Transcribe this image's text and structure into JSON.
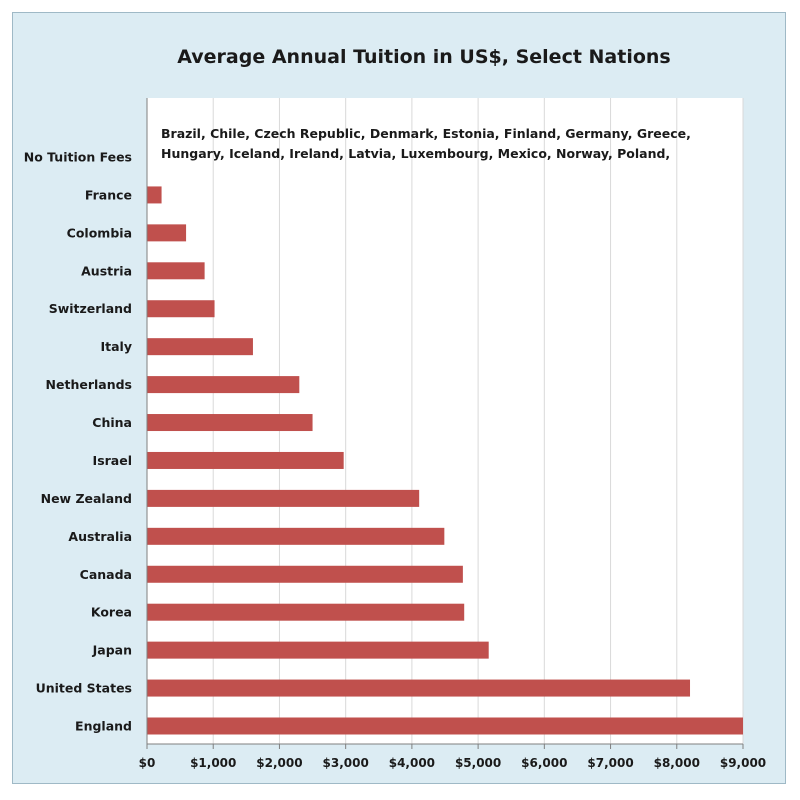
{
  "chart_data": {
    "type": "bar",
    "orientation": "horizontal",
    "title": "Average Annual Tuition in US$, Select Nations",
    "categories": [
      "No Tuition Fees",
      "France",
      "Colombia",
      "Austria",
      "Switzerland",
      "Italy",
      "Netherlands",
      "China",
      "Israel",
      "New Zealand",
      "Australia",
      "Canada",
      "Korea",
      "Japan",
      "United States",
      "England"
    ],
    "values": [
      0,
      220,
      590,
      870,
      1020,
      1600,
      2300,
      2500,
      2970,
      4110,
      4490,
      4770,
      4790,
      5160,
      8200,
      9000
    ],
    "xlim": [
      0,
      9000
    ],
    "x_ticks": [
      "$0",
      "$1,000",
      "$2,000",
      "$3,000",
      "$4,000",
      "$5,000",
      "$6,000",
      "$7,000",
      "$8,000",
      "$9,000"
    ],
    "grid": "vertical",
    "bar_color": "#c0504d",
    "annotation_lines": [
      "Brazil, Chile, Czech Republic, Denmark, Estonia, Finland, Germany, Greece,",
      "Hungary, Iceland, Ireland, Latvia, Luxembourg, Mexico, Norway, Poland,"
    ]
  }
}
